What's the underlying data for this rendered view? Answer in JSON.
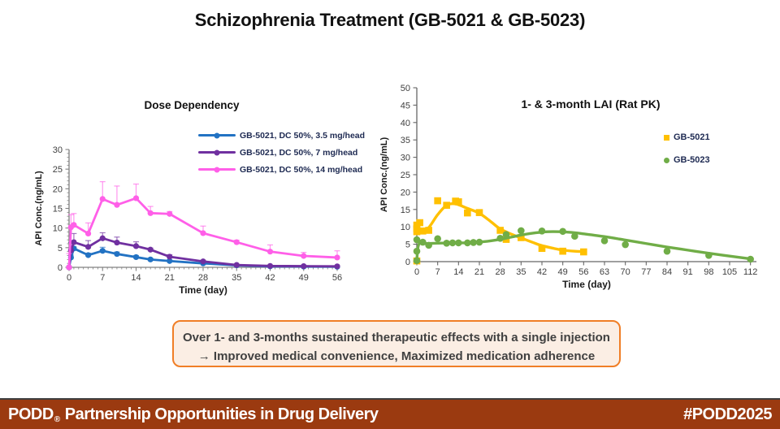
{
  "slide_title": "Schizophrenia Treatment (GB-5021 & GB-5023)",
  "callout": {
    "line1": "Over 1- and 3-months sustained therapeutic effects with a single injection",
    "line2": "→ Improved medical convenience, Maximized medication adherence"
  },
  "footer": {
    "brand": "PODD",
    "reg": "®",
    "tagline": "Partnership Opportunities in Drug Delivery",
    "hashtag": "#PODD2025",
    "bg_color": "#9B3A10"
  },
  "colors": {
    "blue": "#2272C3",
    "purple": "#7030A0",
    "pink": "#FF5FE8",
    "yellow": "#FFC000",
    "green": "#70AD47",
    "callout_border": "#F07E26",
    "footer_bg": "#9B3A10"
  },
  "chart_data": [
    {
      "type": "line",
      "title": "Dose Dependency",
      "xlabel": "Time (day)",
      "ylabel": "API Conc.(ng/mL)",
      "xlim": [
        0,
        56
      ],
      "ylim": [
        0,
        30
      ],
      "xtick_step": 7,
      "ytick_step": 5,
      "xminor_step": 1,
      "yminor_step": 1,
      "axis_color": "#808080",
      "legend_position": "top-right",
      "x": [
        0,
        0.4,
        1,
        4,
        7,
        10,
        14,
        17,
        21,
        28,
        35,
        42,
        49,
        56
      ],
      "series": [
        {
          "name": "GB-5021, DC 50%, 3.5 mg/head",
          "color": "#2272C3",
          "marker": "circle",
          "values": [
            0,
            2.5,
            4.8,
            3.1,
            4.2,
            3.4,
            2.6,
            2.0,
            1.6,
            1.0,
            0.5,
            0.25,
            0.2,
            0.15
          ],
          "err_upper": [
            0,
            0.6,
            0.4,
            0.5,
            0.9,
            0.5,
            0.4,
            0.3,
            0.3,
            0.2,
            0.1,
            0.05,
            0.05,
            0.05
          ]
        },
        {
          "name": "GB-5021, DC 50%, 7 mg/head",
          "color": "#7030A0",
          "marker": "circle",
          "values": [
            0,
            4.3,
            6.4,
            5.2,
            7.4,
            6.3,
            5.4,
            4.5,
            2.7,
            1.5,
            0.6,
            0.35,
            0.3,
            0.25
          ],
          "err_upper": [
            0,
            2.0,
            2.2,
            1.6,
            1.4,
            1.4,
            1.1,
            0.4,
            0.5,
            0.3,
            0.15,
            0.1,
            0.1,
            0.1
          ]
        },
        {
          "name": "GB-5021, DC 50%, 14 mg/head",
          "color": "#FF5FE8",
          "marker": "circle",
          "values": [
            0,
            10.2,
            10.8,
            8.6,
            17.4,
            15.9,
            17.6,
            13.8,
            13.6,
            8.7,
            6.4,
            4.0,
            2.9,
            2.5
          ],
          "err_upper": [
            3.5,
            3.2,
            2.9,
            2.7,
            4.4,
            4.8,
            3.6,
            1.7,
            0.6,
            1.8,
            0.5,
            1.7,
            0.9,
            1.7
          ]
        }
      ]
    },
    {
      "type": "scatter-with-trend",
      "title": "1- & 3-month LAI (Rat PK)",
      "xlabel": "Time (day)",
      "ylabel": "API Conc.(ng/mL)",
      "xlim": [
        0,
        114
      ],
      "ylim": [
        0,
        50
      ],
      "xtick_step": 7,
      "ytick_step": 5,
      "xtick_max_label": 112,
      "axis_color": "#666666",
      "legend_position": "right",
      "series": [
        {
          "name": "GB-5021",
          "color": "#FFC000",
          "marker": "square",
          "trend_x": [
            0,
            2,
            4,
            7,
            10,
            13,
            17,
            21,
            25,
            28,
            32,
            35,
            39,
            42,
            46,
            49,
            53,
            56
          ],
          "trend_y": [
            9.9,
            9.2,
            9.8,
            13.5,
            16.2,
            16.6,
            15.3,
            13.9,
            11.4,
            9.4,
            7.8,
            6.8,
            5.5,
            4.6,
            3.8,
            3.3,
            3.0,
            2.9
          ],
          "points": [
            [
              0,
              0.2
            ],
            [
              0,
              8.6
            ],
            [
              0,
              9.5
            ],
            [
              0,
              10.5
            ],
            [
              1,
              11.2
            ],
            [
              2,
              8.8
            ],
            [
              4,
              9.0
            ],
            [
              7,
              17.5
            ],
            [
              10,
              16.2
            ],
            [
              13,
              17.4
            ],
            [
              14,
              17.2
            ],
            [
              17,
              14.0
            ],
            [
              21,
              14.1
            ],
            [
              28,
              9.0
            ],
            [
              30,
              6.4
            ],
            [
              35,
              6.9
            ],
            [
              42,
              3.8
            ],
            [
              49,
              3.0
            ],
            [
              56,
              2.8
            ]
          ]
        },
        {
          "name": "GB-5023",
          "color": "#70AD47",
          "marker": "circle",
          "trend_x": [
            0,
            0.7,
            3,
            7,
            12,
            17,
            21,
            25,
            28,
            32,
            36,
            40,
            44,
            48,
            52,
            56,
            63,
            70,
            77,
            84,
            91,
            98,
            105,
            112
          ],
          "trend_y": [
            0.6,
            5.0,
            5.2,
            5.3,
            5.4,
            5.4,
            5.6,
            6.0,
            6.4,
            7.1,
            7.8,
            8.3,
            8.6,
            8.6,
            8.4,
            8.0,
            7.2,
            6.2,
            5.2,
            4.2,
            3.3,
            2.4,
            1.6,
            0.8
          ],
          "points": [
            [
              0,
              0.3
            ],
            [
              0,
              3.0
            ],
            [
              0,
              6.3
            ],
            [
              2,
              5.6
            ],
            [
              4,
              4.7
            ],
            [
              7,
              6.6
            ],
            [
              10,
              5.3
            ],
            [
              12,
              5.4
            ],
            [
              14,
              5.4
            ],
            [
              17,
              5.4
            ],
            [
              19,
              5.5
            ],
            [
              21,
              5.6
            ],
            [
              28,
              6.7
            ],
            [
              30,
              7.8
            ],
            [
              35,
              8.9
            ],
            [
              42,
              8.8
            ],
            [
              49,
              8.7
            ],
            [
              53,
              7.3
            ],
            [
              63,
              6.0
            ],
            [
              70,
              4.9
            ],
            [
              84,
              3.0
            ],
            [
              98,
              1.8
            ],
            [
              112,
              0.7
            ]
          ]
        }
      ]
    }
  ]
}
